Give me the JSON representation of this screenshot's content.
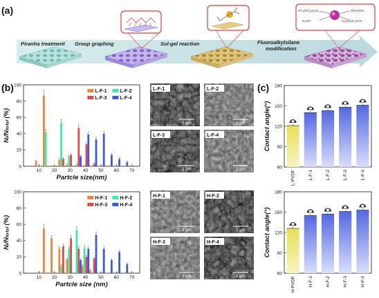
{
  "panels": {
    "a": "(a)",
    "b": "(b)",
    "c": "(c)"
  },
  "scheme": {
    "steps": [
      "Piranha treatment",
      "Group graphing",
      "Sol-gel reaction",
      "Fluoroalkylsilane modification"
    ],
    "chem_left": "CF₃(CF₂)₇C₂H₄",
    "chem_left2": "H₃CO",
    "chem_right": "OCH₂CH₃",
    "chem_right2": "C₂H₄(CF₂)₇CF₃"
  },
  "colors": {
    "F1": "#f0843c",
    "F2": "#3ee6b0",
    "F3": "#e24a4a",
    "F4": "#3a5ad8",
    "pvdf": "#e8df5a",
    "blue_bar": "#6a7de8"
  },
  "chart_data": [
    {
      "type": "bar",
      "ylabel": "Nᵢ/Nₜₒₜₐₗ (%)",
      "xlabel": "Partcle size(nm)",
      "ylim": [
        0,
        100
      ],
      "yticks": [
        0,
        20,
        40,
        60,
        80,
        100
      ],
      "xticks": [
        10,
        20,
        30,
        40,
        50,
        60,
        70
      ],
      "legend": "top-right",
      "series": [
        {
          "name": "L-F-1",
          "x": [
            10,
            15,
            25,
            30
          ],
          "values": [
            6,
            87,
            8,
            2
          ]
        },
        {
          "name": "L-F-2",
          "x": [
            15,
            25,
            30,
            35
          ],
          "values": [
            42,
            53,
            12,
            2
          ]
        },
        {
          "name": "L-F-3",
          "x": [
            25,
            30,
            35,
            40,
            45
          ],
          "values": [
            9,
            14,
            47,
            27,
            3
          ]
        },
        {
          "name": "L-F-4",
          "x": [
            35,
            40,
            45,
            50,
            55,
            60,
            65
          ],
          "values": [
            12,
            39,
            33,
            40,
            14,
            9,
            5
          ]
        }
      ]
    },
    {
      "type": "bar",
      "ylabel": "Nᵢ/Nₜₒₜₐₗ (%)",
      "xlabel": "Partcle size (nm)",
      "ylim": [
        0,
        100
      ],
      "yticks": [
        0,
        20,
        40,
        60,
        80,
        100
      ],
      "xticks": [
        10,
        20,
        30,
        40,
        50,
        60,
        70
      ],
      "legend": "top-right",
      "series": [
        {
          "name": "H-F-1",
          "x": [
            15,
            20,
            25,
            30,
            40,
            45
          ],
          "values": [
            55,
            43,
            30,
            17,
            9,
            3
          ]
        },
        {
          "name": "H-F-2",
          "x": [
            25,
            30,
            35,
            40
          ],
          "values": [
            9,
            30,
            53,
            31
          ]
        },
        {
          "name": "H-F-3",
          "x": [
            25,
            30,
            35,
            40,
            45
          ],
          "values": [
            33,
            43,
            30,
            20,
            18
          ]
        },
        {
          "name": "H-F-4",
          "x": [
            35,
            40,
            45,
            50,
            55,
            60,
            65
          ],
          "values": [
            16,
            30,
            47,
            30,
            16,
            26,
            11
          ]
        }
      ]
    },
    {
      "type": "bar",
      "ylabel": "Contact angle(°)",
      "ylim": [
        60,
        180
      ],
      "yticks": [
        60,
        90,
        120,
        150,
        180
      ],
      "categories": [
        "L-PVDF",
        "L-F-1",
        "L-F-2",
        "L-F-3",
        "L-F-4"
      ],
      "values": [
        121,
        140,
        143,
        148,
        151
      ]
    },
    {
      "type": "bar",
      "ylabel": "Contact angle(°)",
      "ylim": [
        60,
        180
      ],
      "yticks": [
        60,
        90,
        120,
        150,
        180
      ],
      "categories": [
        "H-PVDF",
        "H-F-1",
        "H-F-2",
        "H-F-3",
        "H-F-4"
      ],
      "values": [
        126,
        145,
        147,
        151,
        153
      ]
    }
  ],
  "sem": {
    "top": [
      "L-F-1",
      "L-F-2",
      "L-F-3",
      "L-F-4"
    ],
    "bottom": [
      "H-F-1",
      "H-F-2",
      "H-F-3",
      "H-F-4"
    ],
    "scale": "1 μm"
  }
}
